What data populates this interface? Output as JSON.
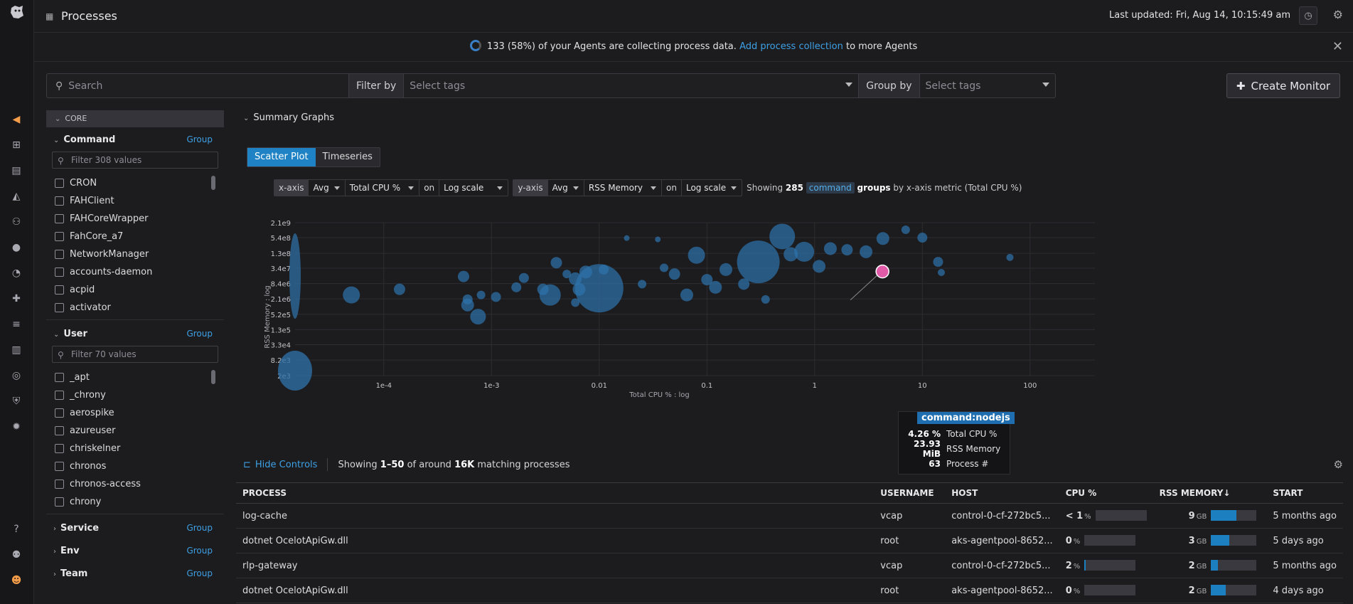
{
  "topbar": {
    "title": "Processes",
    "last_updated": "Last updated: Fri, Aug 14, 10:15:49 am"
  },
  "banner": {
    "text_prefix": "133 (58%) of your Agents are collecting process data.",
    "link": "Add process collection",
    "text_suffix": "to more Agents"
  },
  "search": {
    "placeholder": "Search",
    "filter_label": "Filter by",
    "filter_placeholder": "Select tags",
    "group_label": "Group by",
    "group_placeholder": "Select tags",
    "create_monitor": "Create Monitor"
  },
  "facets": {
    "core_label": "CORE",
    "command": {
      "name": "Command",
      "group": "Group",
      "filter_placeholder": "Filter 308 values",
      "items": [
        "CRON",
        "FAHClient",
        "FAHCoreWrapper",
        "FahCore_a7",
        "NetworkManager",
        "accounts-daemon",
        "acpid",
        "activator"
      ]
    },
    "user": {
      "name": "User",
      "group": "Group",
      "filter_placeholder": "Filter 70 values",
      "items": [
        "_apt",
        "_chrony",
        "aerospike",
        "azureuser",
        "chriskelner",
        "chronos",
        "chronos-access",
        "chrony"
      ]
    },
    "service": {
      "name": "Service",
      "group": "Group"
    },
    "env": {
      "name": "Env",
      "group": "Group"
    },
    "team": {
      "name": "Team",
      "group": "Group"
    }
  },
  "summary": {
    "heading": "Summary Graphs",
    "tab_scatter": "Scatter Plot",
    "tab_timeseries": "Timeseries",
    "xaxis": {
      "label": "x-axis",
      "agg": "Avg",
      "metric": "Total CPU %",
      "on": "on",
      "scale": "Log scale"
    },
    "yaxis": {
      "label": "y-axis",
      "agg": "Avg",
      "metric": "RSS Memory",
      "on": "on",
      "scale": "Log scale"
    },
    "showing_prefix": "Showing",
    "showing_count": "285",
    "showing_tag": "command",
    "showing_suffix_bold": "groups",
    "showing_suffix": "by x-axis metric (Total CPU %)"
  },
  "chart_data": {
    "type": "scatter",
    "xlabel": "Total CPU % : log",
    "ylabel": "RSS Memory : log",
    "x_scale": "log",
    "y_scale": "log",
    "x_ticks": [
      "1e-4",
      "1e-3",
      "0.01",
      "0.1",
      "1",
      "10",
      "100"
    ],
    "x_tick_values": [
      0.0001,
      0.001,
      0.01,
      0.1,
      1,
      10,
      100
    ],
    "y_ticks": [
      "2.1e9",
      "5.4e8",
      "1.3e8",
      "3.4e7",
      "8.4e6",
      "2.1e6",
      "5.2e5",
      "1.3e5",
      "3.3e4",
      "8.2e3",
      "2e3"
    ],
    "y_tick_values": [
      2100000000,
      540000000,
      130000000,
      34000000,
      8400000,
      2100000,
      520000,
      130000,
      33000,
      8200,
      2000
    ],
    "xlim": [
      1.5e-05,
      400
    ],
    "ylim": [
      2000,
      2100000000
    ],
    "points": [
      {
        "x": 5e-05,
        "y": 3000000,
        "r": 12
      },
      {
        "x": 0.00014,
        "y": 5000000,
        "r": 8
      },
      {
        "x": 0.00055,
        "y": 16000000,
        "r": 8
      },
      {
        "x": 0.0006,
        "y": 1200000,
        "r": 9
      },
      {
        "x": 0.0006,
        "y": 2000000,
        "r": 7
      },
      {
        "x": 0.00075,
        "y": 420000,
        "r": 11
      },
      {
        "x": 0.0008,
        "y": 3000000,
        "r": 6
      },
      {
        "x": 0.0011,
        "y": 2500000,
        "r": 7
      },
      {
        "x": 0.0017,
        "y": 6000000,
        "r": 7
      },
      {
        "x": 0.002,
        "y": 14000000,
        "r": 7
      },
      {
        "x": 0.003,
        "y": 5000000,
        "r": 8
      },
      {
        "x": 0.0035,
        "y": 3000000,
        "r": 15
      },
      {
        "x": 0.004,
        "y": 56000000,
        "r": 8
      },
      {
        "x": 0.005,
        "y": 20000000,
        "r": 6
      },
      {
        "x": 0.006,
        "y": 1500000,
        "r": 6
      },
      {
        "x": 0.006,
        "y": 13000000,
        "r": 9
      },
      {
        "x": 0.0065,
        "y": 5000000,
        "r": 9
      },
      {
        "x": 0.0075,
        "y": 24000000,
        "r": 9
      },
      {
        "x": 0.01,
        "y": 5500000,
        "r": 34
      },
      {
        "x": 0.011,
        "y": 30000000,
        "r": 7
      },
      {
        "x": 0.018,
        "y": 520000000,
        "r": 4
      },
      {
        "x": 0.025,
        "y": 8000000,
        "r": 6
      },
      {
        "x": 0.035,
        "y": 460000000,
        "r": 4
      },
      {
        "x": 0.04,
        "y": 35000000,
        "r": 6
      },
      {
        "x": 0.05,
        "y": 20000000,
        "r": 8
      },
      {
        "x": 0.065,
        "y": 3000000,
        "r": 9
      },
      {
        "x": 0.08,
        "y": 110000000,
        "r": 12
      },
      {
        "x": 0.1,
        "y": 12000000,
        "r": 8
      },
      {
        "x": 0.12,
        "y": 6000000,
        "r": 9
      },
      {
        "x": 0.15,
        "y": 30000000,
        "r": 9
      },
      {
        "x": 0.22,
        "y": 8000000,
        "r": 8
      },
      {
        "x": 0.3,
        "y": 60000000,
        "r": 30
      },
      {
        "x": 0.35,
        "y": 2000000,
        "r": 6
      },
      {
        "x": 0.5,
        "y": 600000000,
        "r": 18
      },
      {
        "x": 0.6,
        "y": 120000000,
        "r": 10
      },
      {
        "x": 0.8,
        "y": 150000000,
        "r": 14
      },
      {
        "x": 1.1,
        "y": 40000000,
        "r": 9
      },
      {
        "x": 1.4,
        "y": 200000000,
        "r": 9
      },
      {
        "x": 2,
        "y": 180000000,
        "r": 8
      },
      {
        "x": 3,
        "y": 150000000,
        "r": 9
      },
      {
        "x": 4.3,
        "y": 500000000,
        "r": 9
      },
      {
        "x": 4.26,
        "y": 25100000,
        "r": 9,
        "highlight": true
      },
      {
        "x": 7,
        "y": 1100000000,
        "r": 6
      },
      {
        "x": 10,
        "y": 540000000,
        "r": 7
      },
      {
        "x": 14,
        "y": 60000000,
        "r": 7
      },
      {
        "x": 15,
        "y": 23000000,
        "r": 5
      },
      {
        "x": 65,
        "y": 90000000,
        "r": 5
      }
    ],
    "tooltip": {
      "title": "command:nodejs",
      "rows": [
        {
          "value": "4.26 %",
          "label": "Total CPU %"
        },
        {
          "value": "23.93 MiB",
          "label": "RSS Memory"
        },
        {
          "value": "63",
          "label": "Process #"
        }
      ]
    }
  },
  "table": {
    "hide_controls": "Hide Controls",
    "showing_prefix": "Showing",
    "showing_range": "1–50",
    "showing_mid": "of around",
    "showing_total": "16K",
    "showing_suffix": "matching processes",
    "columns": [
      "PROCESS",
      "USERNAME",
      "HOST",
      "CPU %",
      "RSS MEMORY↓",
      "START"
    ],
    "rows": [
      {
        "process": "log-cache",
        "username": "vcap",
        "host": "control-0-cf-272bc5...",
        "cpu": "< 1",
        "cpu_frac": 0.0,
        "mem": "9",
        "mem_frac": 0.55,
        "start": "5 months ago"
      },
      {
        "process": "dotnet OcelotApiGw.dll",
        "username": "root",
        "host": "aks-agentpool-8652...",
        "cpu": "0",
        "cpu_frac": 0.0,
        "mem": "3",
        "mem_frac": 0.4,
        "start": "5 days ago"
      },
      {
        "process": "rlp-gateway",
        "username": "vcap",
        "host": "control-0-cf-272bc5...",
        "cpu": "2",
        "cpu_frac": 0.02,
        "mem": "2",
        "mem_frac": 0.15,
        "start": "5 months ago"
      },
      {
        "process": "dotnet OcelotApiGw.dll",
        "username": "root",
        "host": "aks-agentpool-8652...",
        "cpu": "0",
        "cpu_frac": 0.0,
        "mem": "2",
        "mem_frac": 0.33,
        "start": "4 days ago"
      }
    ],
    "cpu_unit": "%",
    "mem_unit": "GB"
  }
}
